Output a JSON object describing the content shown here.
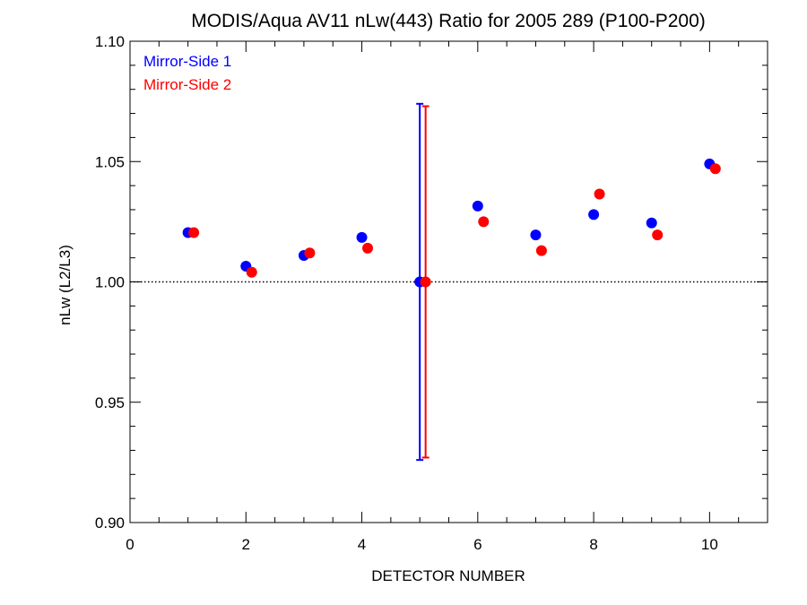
{
  "chart_data": {
    "type": "scatter",
    "title": "MODIS/Aqua AV11 nLw(443) Ratio for 2005 289 (P100-P200)",
    "xlabel": "DETECTOR NUMBER",
    "ylabel": "nLw (L2/L3)",
    "xlim": [
      0,
      11
    ],
    "ylim": [
      0.9,
      1.1
    ],
    "x_ticks": [
      0,
      2,
      4,
      6,
      8,
      10
    ],
    "x_tick_labels": [
      "0",
      "2",
      "4",
      "6",
      "8",
      "10"
    ],
    "y_ticks": [
      0.9,
      0.95,
      1.0,
      1.05,
      1.1
    ],
    "y_tick_labels": [
      "0.90",
      "0.95",
      "1.00",
      "1.05",
      "1.10"
    ],
    "reference_line": {
      "y": 1.0,
      "style": "dotted"
    },
    "legend": {
      "placement": "top-left"
    },
    "series": [
      {
        "name": "Mirror-Side 1",
        "color": "#0000ff",
        "x": [
          1,
          2,
          3,
          4,
          5,
          6,
          7,
          8,
          9,
          10
        ],
        "y": [
          1.0205,
          1.0065,
          1.011,
          1.0185,
          1.0,
          1.0315,
          1.0195,
          1.028,
          1.0245,
          1.049
        ],
        "error_bar": {
          "x": 5,
          "low": 0.926,
          "high": 1.074
        }
      },
      {
        "name": "Mirror-Side 2",
        "color": "#ff0000",
        "x": [
          1.1,
          2.1,
          3.1,
          4.1,
          5.1,
          6.1,
          7.1,
          8.1,
          9.1,
          10.1
        ],
        "y": [
          1.0205,
          1.004,
          1.012,
          1.014,
          1.0,
          1.025,
          1.013,
          1.0365,
          1.0195,
          1.047
        ],
        "error_bar": {
          "x": 5.1,
          "low": 0.927,
          "high": 1.073
        }
      }
    ]
  }
}
